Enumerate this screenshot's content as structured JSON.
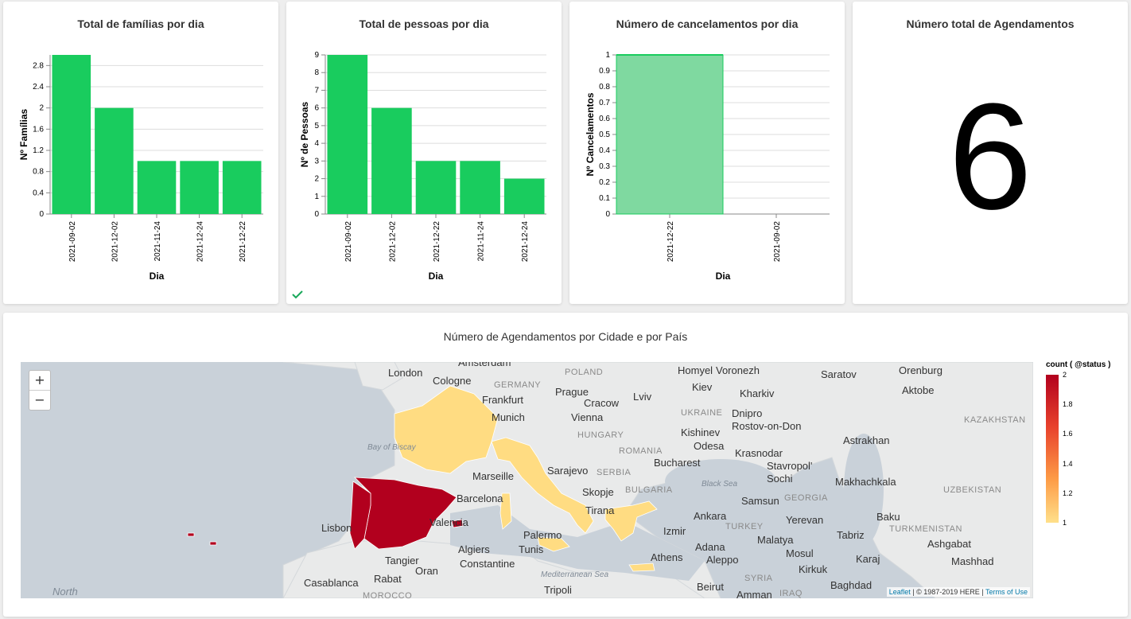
{
  "panels": {
    "familias": {
      "title": "Total de famílias por dia",
      "chart_data": {
        "type": "bar",
        "categories": [
          "2021-09-02",
          "2021-12-02",
          "2021-11-24",
          "2021-12-24",
          "2021-12-22"
        ],
        "values": [
          3,
          2,
          1,
          1,
          1
        ],
        "xlabel": "Dia",
        "ylabel": "Nº Famílias",
        "yticks": [
          "0",
          "0.4",
          "0.8",
          "1.2",
          "1.6",
          "2",
          "2.4",
          "2.8"
        ],
        "ylim": [
          0,
          3
        ],
        "grid": true,
        "color": "#19cc5e"
      }
    },
    "pessoas": {
      "title": "Total de pessoas por dia",
      "chart_data": {
        "type": "bar",
        "categories": [
          "2021-09-02",
          "2021-12-02",
          "2021-12-22",
          "2021-11-24",
          "2021-12-24"
        ],
        "values": [
          9,
          6,
          3,
          3,
          2
        ],
        "xlabel": "Dia",
        "ylabel": "Nº de Pessoas",
        "yticks": [
          "0",
          "1",
          "2",
          "3",
          "4",
          "5",
          "6",
          "7",
          "8",
          "9"
        ],
        "ylim": [
          0,
          9
        ],
        "grid": true,
        "color": "#19cc5e"
      }
    },
    "cancelamentos": {
      "title": "Número de cancelamentos por dia",
      "chart_data": {
        "type": "bar",
        "categories": [
          "2021-12-22",
          "2021-09-02"
        ],
        "values": [
          1,
          0
        ],
        "xlabel": "Dia",
        "ylabel": "Nº Cancelamentos",
        "yticks": [
          "0",
          "0.1",
          "0.2",
          "0.3",
          "0.4",
          "0.5",
          "0.6",
          "0.7",
          "0.8",
          "0.9",
          "1"
        ],
        "ylim": [
          0,
          1
        ],
        "grid": true,
        "color": "#7fd9a0",
        "stroke": "#19cc5e"
      }
    },
    "agendamentos": {
      "title": "Número total de Agendamentos",
      "value": "6"
    },
    "mapa": {
      "title": "Número de Agendamentos por Cidade e por País",
      "zoom_in": "+",
      "zoom_out": "−",
      "attribution_link1": "Leaflet",
      "attribution_text": " | © 1987-2019 HERE | ",
      "attribution_link2": "Terms of Use",
      "legend": {
        "title": "count ( @status )",
        "ticks": [
          "2",
          "1.8",
          "1.6",
          "1.4",
          "1.2",
          "1"
        ]
      },
      "countries": [
        {
          "name": "Spain",
          "count": 2,
          "color": "#b2001e"
        },
        {
          "name": "Portugal",
          "count": 2,
          "color": "#b2001e"
        },
        {
          "name": "France",
          "count": 1,
          "color": "#ffdc82"
        },
        {
          "name": "Italy",
          "count": 1,
          "color": "#ffdc82"
        },
        {
          "name": "Greece",
          "count": 1,
          "color": "#ffdc82"
        }
      ],
      "place_labels": [
        "London",
        "Cologne",
        "Amsterdam",
        "POLAND",
        "GERMANY",
        "Frankfurt",
        "Prague",
        "Cracow",
        "Lviv",
        "Munich",
        "Vienna",
        "HUNGARY",
        "Homyel",
        "Voronezh",
        "Kiev",
        "Kharkiv",
        "UKRAINE",
        "Dnipro",
        "Rostov-on-Don",
        "Kishinev",
        "Odesa",
        "Krasnodar",
        "Stavropol'",
        "Sochi",
        "ROMANIA",
        "Bucharest",
        "Black Sea",
        "Sarajevo",
        "SERBIA",
        "BULGARIA",
        "Skopje",
        "Tirana",
        "Samsun",
        "GEORGIA",
        "Ankara",
        "Yerevan",
        "TURKEY",
        "Izmir",
        "Adana",
        "Malatya",
        "Mosul",
        "Kirkuk",
        "Aleppo",
        "SYRIA",
        "Beirut",
        "Amman",
        "IRAQ",
        "Baghdad",
        "Tabriz",
        "Baku",
        "Karaj",
        "Makhachkala",
        "Astrakhan",
        "Saratov",
        "Orenburg",
        "Aktobe",
        "KAZAKHSTAN",
        "UZBEKISTAN",
        "TURKMENISTAN",
        "Ashgabat",
        "Mashhad",
        "Barcelona",
        "Marseille",
        "Valencia",
        "Lisbon",
        "Bay of Biscay",
        "Algiers",
        "Constantine",
        "Tunis",
        "Palermo",
        "Athens",
        "Tangier",
        "Oran",
        "Rabat",
        "Casablanca",
        "MOROCCO",
        "Tripoli",
        "Mediterranean Sea",
        "North"
      ]
    }
  }
}
